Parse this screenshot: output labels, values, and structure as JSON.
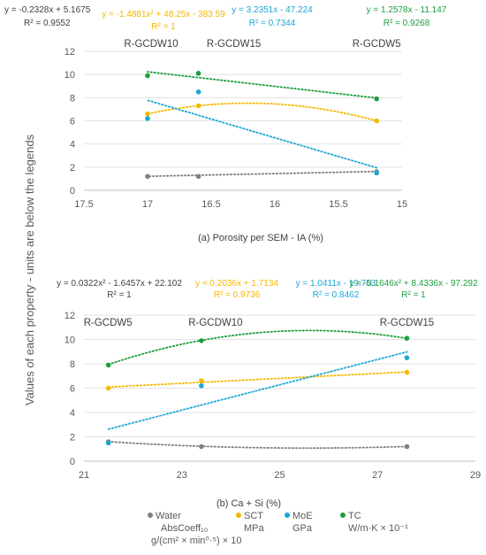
{
  "ylabel": "Values of each property - units are below the legends",
  "colors": {
    "water": "#808080",
    "sct": "#f5b800",
    "moe": "#1aa7d6",
    "tc": "#1e9e3e"
  },
  "legend": [
    {
      "key": "water",
      "lines": [
        "Water",
        "AbsCoeff₁₀",
        "g/(cm² × min⁰·⁵) × 10"
      ]
    },
    {
      "key": "sct",
      "lines": [
        "SCT",
        "MPa"
      ]
    },
    {
      "key": "moe",
      "lines": [
        "MoE",
        "GPa"
      ]
    },
    {
      "key": "tc",
      "lines": [
        "TC",
        "W/m·K × 10⁻¹"
      ]
    }
  ],
  "chart_data": [
    {
      "type": "scatter",
      "xlabel": "(a) Porosity per SEM - IA (%)",
      "x_reversed": true,
      "xlim": [
        17.5,
        15
      ],
      "ylim": [
        0,
        12
      ],
      "xticks": [
        "17.5",
        "17",
        "16.5",
        "16",
        "15.5",
        "15"
      ],
      "yticks": [
        "0",
        "2",
        "4",
        "6",
        "8",
        "10",
        "12"
      ],
      "groups": [
        {
          "label": "R-GCDW10",
          "x": 17.0
        },
        {
          "label": "R-GCDW15",
          "x": 16.6
        },
        {
          "label": "R-GCDW5",
          "x": 15.2
        }
      ],
      "series": [
        {
          "key": "water",
          "x": [
            17.0,
            16.6,
            15.2
          ],
          "y": [
            1.2,
            1.2,
            1.6
          ],
          "trend": {
            "type": "linear",
            "coef": [
              -0.2328,
              5.1675
            ]
          },
          "equation": "y = -0.2328x + 5.1675",
          "r2": "R² = 0.9552"
        },
        {
          "key": "sct",
          "x": [
            17.0,
            16.6,
            15.2
          ],
          "y": [
            6.6,
            7.3,
            6.0
          ],
          "trend": {
            "type": "poly2",
            "coef": [
              -1.4881,
              48.25,
              -383.59
            ]
          },
          "equation": "y = -1.4881x² + 48.25x - 383.59",
          "r2": "R² = 1"
        },
        {
          "key": "moe",
          "x": [
            17.0,
            16.6,
            15.2
          ],
          "y": [
            6.2,
            8.5,
            1.5
          ],
          "trend": {
            "type": "linear",
            "coef": [
              3.2351,
              -47.224
            ]
          },
          "equation": "y = 3.2351x - 47.224",
          "r2": "R² = 0.7344"
        },
        {
          "key": "tc",
          "x": [
            17.0,
            16.6,
            15.2
          ],
          "y": [
            9.9,
            10.1,
            7.9
          ],
          "trend": {
            "type": "linear",
            "coef": [
              1.2578,
              -11.147
            ]
          },
          "equation": "y = 1.2578x - 11.147",
          "r2": "R² = 0.9268"
        }
      ]
    },
    {
      "type": "scatter",
      "xlabel": "(b) Ca + Si (%)",
      "x_reversed": false,
      "xlim": [
        21,
        29
      ],
      "ylim": [
        0,
        12
      ],
      "xticks": [
        "21",
        "23",
        "25",
        "27",
        "29"
      ],
      "yticks": [
        "0",
        "2",
        "4",
        "6",
        "8",
        "10",
        "12"
      ],
      "groups": [
        {
          "label": "R-GCDW5",
          "x": 21.5
        },
        {
          "label": "R-GCDW10",
          "x": 23.4
        },
        {
          "label": "R-GCDW15",
          "x": 27.6
        }
      ],
      "series": [
        {
          "key": "water",
          "x": [
            21.5,
            23.4,
            27.6
          ],
          "y": [
            1.6,
            1.2,
            1.2
          ],
          "trend": {
            "type": "poly2",
            "coef": [
              0.0322,
              -1.6457,
              22.102
            ]
          },
          "equation": "y = 0.0322x² - 1.6457x + 22.102",
          "r2": "R² = 1"
        },
        {
          "key": "sct",
          "x": [
            21.5,
            23.4,
            27.6
          ],
          "y": [
            6.0,
            6.6,
            7.3
          ],
          "trend": {
            "type": "linear",
            "coef": [
              0.2036,
              1.7134
            ]
          },
          "equation": "y = 0.2036x + 1.7134",
          "r2": "R² = 0.9736"
        },
        {
          "key": "moe",
          "x": [
            21.5,
            23.4,
            27.6
          ],
          "y": [
            1.5,
            6.2,
            8.5
          ],
          "trend": {
            "type": "linear",
            "coef": [
              1.0411,
              -19.753
            ]
          },
          "equation": "y = 1.0411x - 19.753",
          "r2": "R² = 0.8462"
        },
        {
          "key": "tc",
          "x": [
            21.5,
            23.4,
            27.6
          ],
          "y": [
            7.9,
            9.9,
            10.1
          ],
          "trend": {
            "type": "poly2",
            "coef": [
              -0.1646,
              8.4336,
              -97.292
            ]
          },
          "equation": "y = -0.1646x² + 8.4336x - 97.292",
          "r2": "R² = 1"
        }
      ]
    }
  ]
}
